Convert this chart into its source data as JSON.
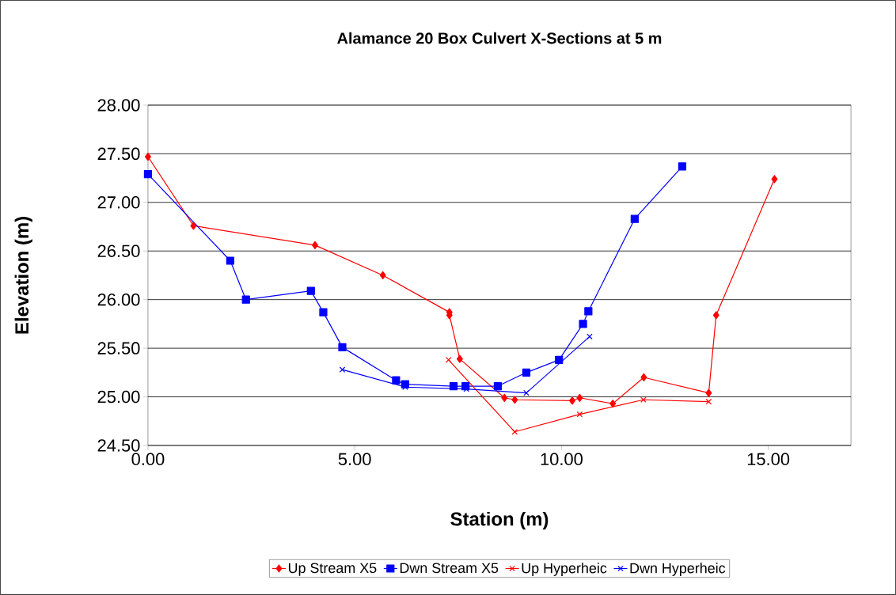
{
  "chart_data": {
    "type": "line",
    "title": "Alamance 20 Box Culvert X-Sections at 5 m",
    "xlabel": "Station (m)",
    "ylabel": "Elevation (m)",
    "xlim": [
      0,
      17
    ],
    "ylim": [
      24.5,
      28
    ],
    "xticks": [
      {
        "value": 0,
        "label": "0.00"
      },
      {
        "value": 5,
        "label": "5.00"
      },
      {
        "value": 10,
        "label": "10.00"
      },
      {
        "value": 15,
        "label": "15.00"
      }
    ],
    "yticks": [
      {
        "value": 24.5,
        "label": "24.50"
      },
      {
        "value": 25,
        "label": "25.00"
      },
      {
        "value": 25.5,
        "label": "25.50"
      },
      {
        "value": 26,
        "label": "26.00"
      },
      {
        "value": 26.5,
        "label": "26.50"
      },
      {
        "value": 27,
        "label": "27.00"
      },
      {
        "value": 27.5,
        "label": "27.50"
      },
      {
        "value": 28,
        "label": "28.00"
      }
    ],
    "grid": "y",
    "legend": "bottom",
    "line_style": "solid",
    "series": [
      {
        "name": "Up Stream X5",
        "color": "#ff0000",
        "marker": "diamond",
        "x": [
          0,
          1.1,
          4.04,
          5.68,
          7.29,
          7.29,
          7.54,
          8.62,
          8.87,
          10.26,
          10.44,
          11.24,
          11.99,
          13.56,
          13.74,
          15.15
        ],
        "values": [
          27.47,
          26.76,
          26.56,
          26.25,
          25.87,
          25.84,
          25.39,
          24.99,
          24.97,
          24.96,
          24.99,
          24.93,
          25.2,
          25.04,
          25.84,
          27.24
        ]
      },
      {
        "name": "Dwn Stream X5",
        "color": "#0000ff",
        "marker": "square",
        "x": [
          0,
          1.99,
          2.37,
          3.94,
          4.24,
          4.7,
          6.0,
          6.22,
          7.39,
          7.68,
          8.46,
          9.15,
          9.94,
          10.52,
          10.65,
          11.77,
          12.92
        ],
        "values": [
          27.29,
          26.4,
          26.0,
          26.09,
          25.87,
          25.51,
          25.17,
          25.13,
          25.11,
          25.11,
          25.11,
          25.25,
          25.38,
          25.75,
          25.88,
          26.83,
          27.37
        ]
      },
      {
        "name": "Up Hyperheic",
        "color": "#ff0000",
        "marker": "cross",
        "x": [
          7.27,
          8.87,
          10.44,
          11.98,
          13.56
        ],
        "values": [
          25.38,
          24.64,
          24.82,
          24.97,
          24.95
        ]
      },
      {
        "name": "Dwn Hyperheic",
        "color": "#0000ff",
        "marker": "cross",
        "x": [
          4.7,
          6.22,
          7.7,
          9.15,
          10.68
        ],
        "values": [
          25.28,
          25.1,
          25.08,
          25.04,
          25.62
        ]
      }
    ]
  }
}
